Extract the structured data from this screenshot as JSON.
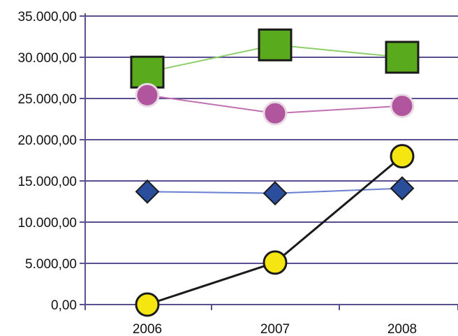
{
  "chart_data": {
    "type": "line",
    "categories": [
      "2006",
      "2007",
      "2008"
    ],
    "ylim": [
      0,
      35000
    ],
    "yticks": [
      0,
      5000,
      10000,
      15000,
      20000,
      25000,
      30000,
      35000
    ],
    "ytick_labels": [
      "0,00",
      "5.000,00",
      "10.000,00",
      "15.000,00",
      "20.000,00",
      "25.000,00",
      "30.000,00",
      "35.000,00"
    ],
    "grid": true,
    "legend": "none",
    "series": [
      {
        "values": [
          28200,
          31500,
          30000
        ],
        "color": "#5aaa1e",
        "line_color": "#8ccf6a",
        "marker": "square"
      },
      {
        "values": [
          25400,
          23200,
          24100
        ],
        "color": "#b0559e",
        "line_color": "#c070b0",
        "marker": "circle"
      },
      {
        "values": [
          13700,
          13500,
          14100
        ],
        "color": "#2a4d9c",
        "line_color": "#6a7fd0",
        "marker": "diamond"
      },
      {
        "values": [
          0,
          5100,
          18000
        ],
        "color": "#f5e612",
        "line_color": "#1a1a1a",
        "marker": "circle"
      }
    ]
  }
}
